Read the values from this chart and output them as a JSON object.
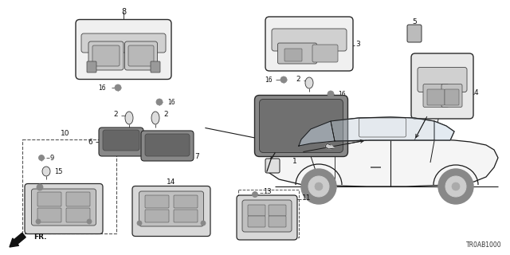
{
  "bg_color": "#ffffff",
  "diagram_code": "TR0AB1000",
  "line_color": "#1a1a1a",
  "text_color": "#111111",
  "fig_w": 6.4,
  "fig_h": 3.2,
  "dpi": 100
}
